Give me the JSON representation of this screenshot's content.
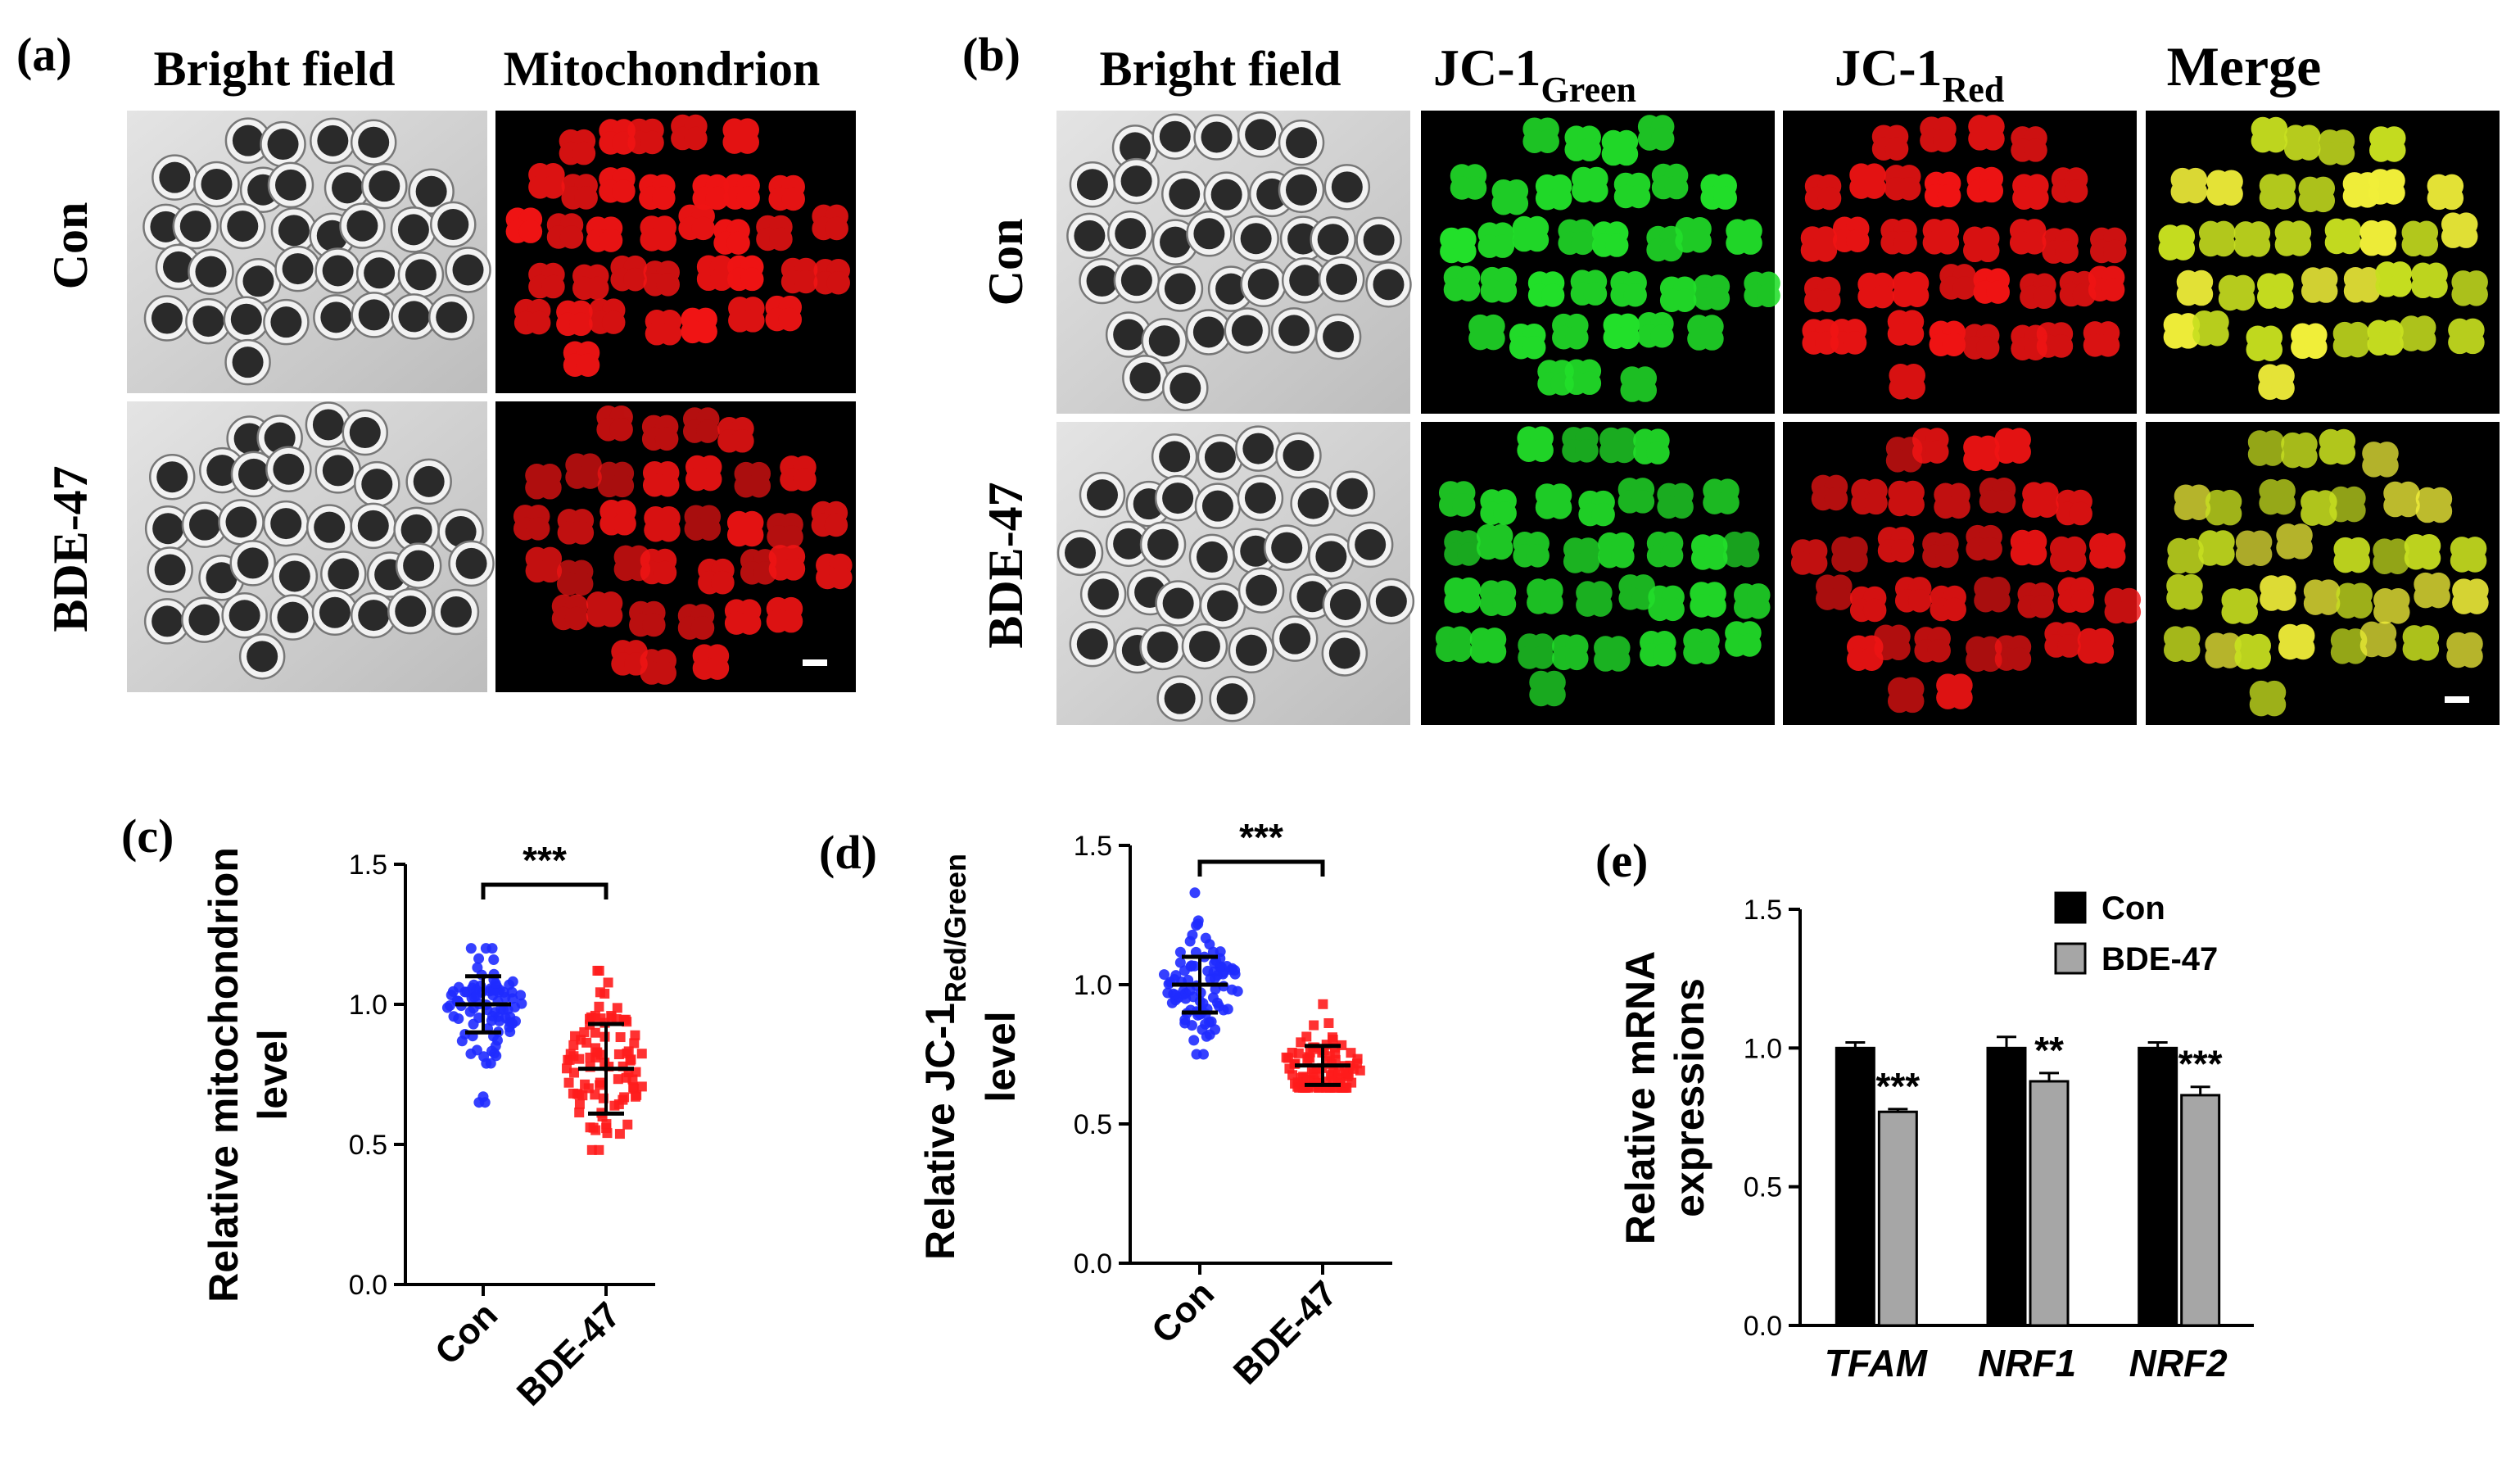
{
  "panels": {
    "a": {
      "tag": "(a)",
      "columns": [
        "Bright field",
        "Mitochondrion"
      ],
      "rows": [
        "Con",
        "BDE-47"
      ]
    },
    "b": {
      "tag": "(b)",
      "columns": {
        "bright": "Bright field",
        "green_main": "JC-1",
        "green_sub": "Green",
        "red_main": "JC-1",
        "red_sub": "Red",
        "merge": "Merge"
      },
      "rows": [
        "Con",
        "BDE-47"
      ]
    },
    "c": {
      "tag": "(c)"
    },
    "d": {
      "tag": "(d)"
    },
    "e": {
      "tag": "(e)"
    }
  },
  "colors": {
    "con": "#1f2bff",
    "bde": "#ff1c1c",
    "bar_con": "#000000",
    "bar_bde": "#a6a6a6",
    "green": "#22e02a",
    "red": "#f01414",
    "merge": "#c8e020",
    "bright_bg": "#d8d8d8"
  },
  "chart_data": [
    {
      "id": "c",
      "type": "scatter",
      "categories": [
        "Con",
        "BDE-47"
      ],
      "ylabel": [
        "Relative mitochondrion",
        "level"
      ],
      "ylim": [
        0,
        1.5
      ],
      "yticks": [
        "0.0",
        "0.5",
        "1.0",
        "1.5"
      ],
      "series": [
        {
          "name": "Con",
          "mean": 1.0,
          "sd": 0.1,
          "min": 0.65,
          "max": 1.2,
          "n": 90
        },
        {
          "name": "BDE-47",
          "mean": 0.77,
          "sd": 0.16,
          "min": 0.48,
          "max": 1.12,
          "n": 90
        }
      ],
      "significance": "***"
    },
    {
      "id": "d",
      "type": "scatter",
      "categories": [
        "Con",
        "BDE-47"
      ],
      "ylabel_main": "Relative JC-1",
      "ylabel_sub": "Red/Green",
      "ylabel_line2": "level",
      "ylim": [
        0,
        1.5
      ],
      "yticks": [
        "0.0",
        "0.5",
        "1.0",
        "1.5"
      ],
      "series": [
        {
          "name": "Con",
          "mean": 1.0,
          "sd": 0.1,
          "min": 0.75,
          "max": 1.33,
          "n": 90
        },
        {
          "name": "BDE-47",
          "mean": 0.71,
          "sd": 0.07,
          "min": 0.63,
          "max": 0.93,
          "n": 90
        }
      ],
      "significance": "***"
    },
    {
      "id": "e",
      "type": "bar",
      "categories": [
        "TFAM",
        "NRF1",
        "NRF2"
      ],
      "ylabel": [
        "Relative mRNA",
        "expressions"
      ],
      "ylim": [
        0,
        1.5
      ],
      "yticks": [
        "0.0",
        "0.5",
        "1.0",
        "1.5"
      ],
      "legend": [
        "Con",
        "BDE-47"
      ],
      "legend_position": "top-right",
      "series": [
        {
          "name": "Con",
          "values": [
            1.0,
            1.0,
            1.0
          ],
          "errors": [
            0.02,
            0.04,
            0.02
          ]
        },
        {
          "name": "BDE-47",
          "values": [
            0.77,
            0.88,
            0.83
          ],
          "errors": [
            0.01,
            0.03,
            0.03
          ]
        }
      ],
      "significance": [
        "***",
        "**",
        "***"
      ]
    }
  ]
}
